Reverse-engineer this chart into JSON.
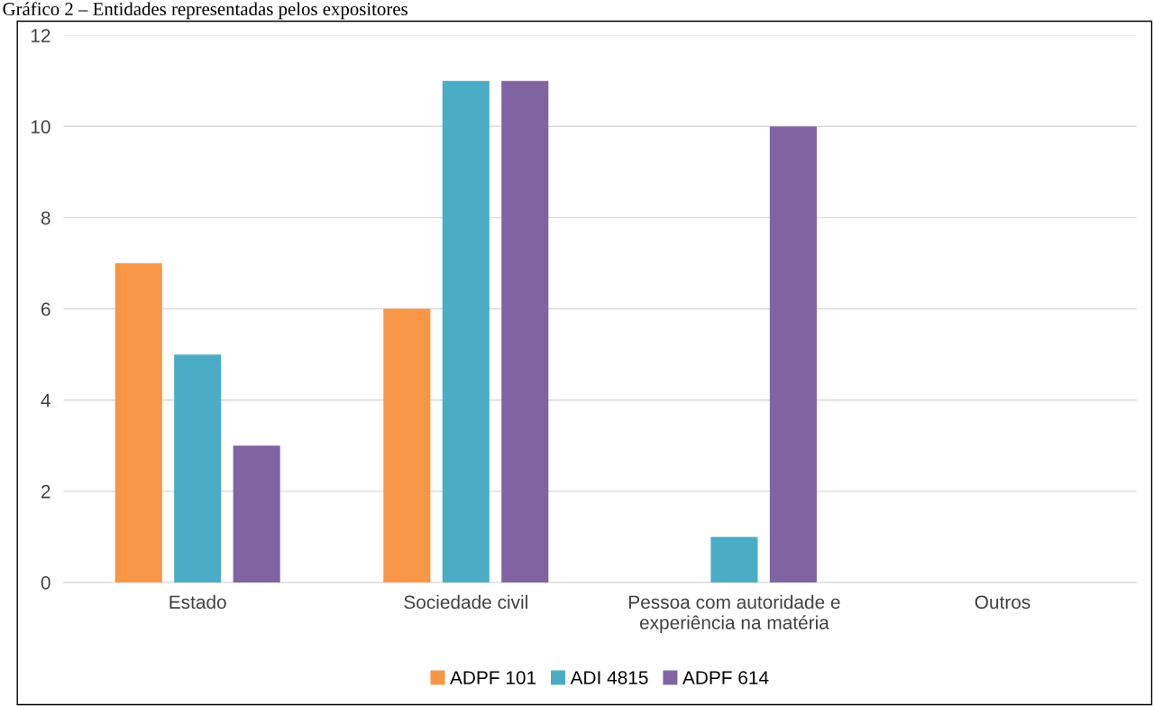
{
  "chart_data": {
    "type": "bar",
    "title": "Gráfico 2 – Entidades representadas pelos expositores",
    "categories": [
      "Estado",
      "Sociedade civil",
      "Pessoa com autoridade e\nexperiência na matéria",
      "Outros"
    ],
    "series": [
      {
        "name": "ADPF 101",
        "color": "#f79646",
        "values": [
          7,
          6,
          0,
          0
        ]
      },
      {
        "name": "ADI 4815",
        "color": "#4bacc6",
        "values": [
          5,
          11,
          1,
          0
        ]
      },
      {
        "name": "ADPF 614",
        "color": "#8064a2",
        "values": [
          3,
          11,
          10,
          0
        ]
      }
    ],
    "ylim": [
      0,
      12
    ],
    "yticks": [
      0,
      2,
      4,
      6,
      8,
      10,
      12
    ],
    "grid": "y",
    "legend": "bottom"
  }
}
